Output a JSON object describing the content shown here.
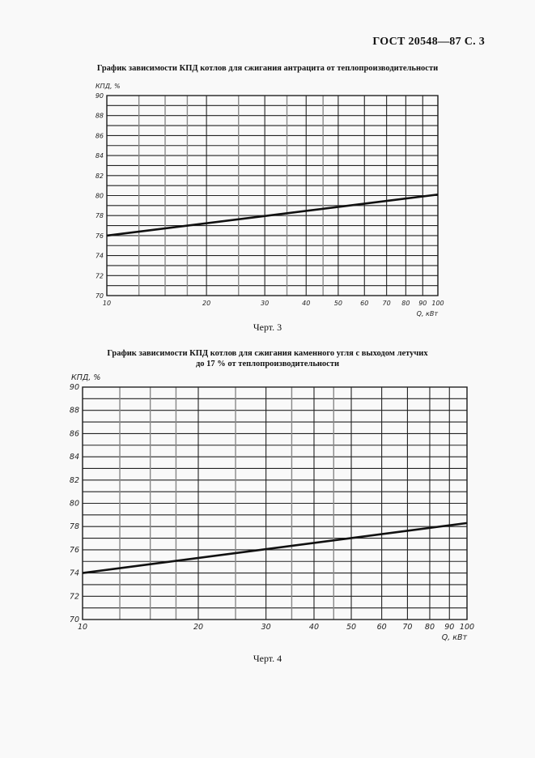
{
  "header": {
    "doc_ref": "ГОСТ 20548—87 С. 3"
  },
  "chart_data": [
    {
      "type": "line",
      "title": "График зависимости КПД котлов для сжигания антрацита от теплопроизводительности",
      "caption": "Черт. 3",
      "xlabel": "Q, кВт",
      "ylabel": "КПД, %",
      "xscale": "log",
      "xlim": [
        10,
        100
      ],
      "ylim": [
        70,
        90
      ],
      "x_ticks": [
        10,
        20,
        30,
        40,
        50,
        60,
        70,
        80,
        90,
        100
      ],
      "y_ticks": [
        70,
        72,
        74,
        76,
        78,
        80,
        82,
        84,
        86,
        88,
        90
      ],
      "grid": true,
      "series": [
        {
          "name": "КПД",
          "x": [
            10,
            100
          ],
          "y": [
            76,
            80.1
          ]
        }
      ]
    },
    {
      "type": "line",
      "title": "График зависимости КПД котлов для сжигания каменного угля с выходом летучих до 17 % от теплопроизводительности",
      "title_lines": [
        "График зависимости КПД котлов для сжигания каменного угля с выходом летучих",
        "до 17 % от теплопроизводительности"
      ],
      "caption": "Черт. 4",
      "xlabel": "Q, кВт",
      "ylabel": "КПД, %",
      "xscale": "log",
      "xlim": [
        10,
        100
      ],
      "ylim": [
        70,
        90
      ],
      "x_ticks": [
        10,
        20,
        30,
        40,
        50,
        60,
        70,
        80,
        90,
        100
      ],
      "y_ticks": [
        70,
        72,
        74,
        76,
        78,
        80,
        82,
        84,
        86,
        88,
        90
      ],
      "grid": true,
      "series": [
        {
          "name": "КПД",
          "x": [
            10,
            100
          ],
          "y": [
            74,
            78.3
          ]
        }
      ]
    }
  ]
}
